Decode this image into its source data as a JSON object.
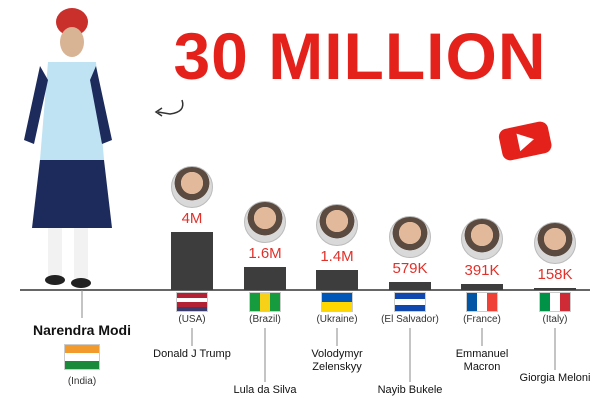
{
  "chart_data": {
    "type": "bar",
    "highlight": {
      "value": 30000000,
      "value_label": "30 MILLION",
      "name": "Narendra Modi",
      "country": "(India)"
    },
    "categories": [
      "Donald J Trump",
      "Lula da Silva",
      "Volodymyr Zelenskyy",
      "Nayib Bukele",
      "Emmanuel Macron",
      "Giorgia Meloni"
    ],
    "countries": [
      "(USA)",
      "(Brazil)",
      "(Ukraine)",
      "(El Salvador)",
      "(France)",
      "(Italy)"
    ],
    "values": [
      4000000,
      1600000,
      1400000,
      579000,
      391000,
      158000
    ],
    "value_labels": [
      "4M",
      "1.6M",
      "1.4M",
      "579K",
      "391K",
      "158K"
    ],
    "color": "#3d3d3d"
  }
}
